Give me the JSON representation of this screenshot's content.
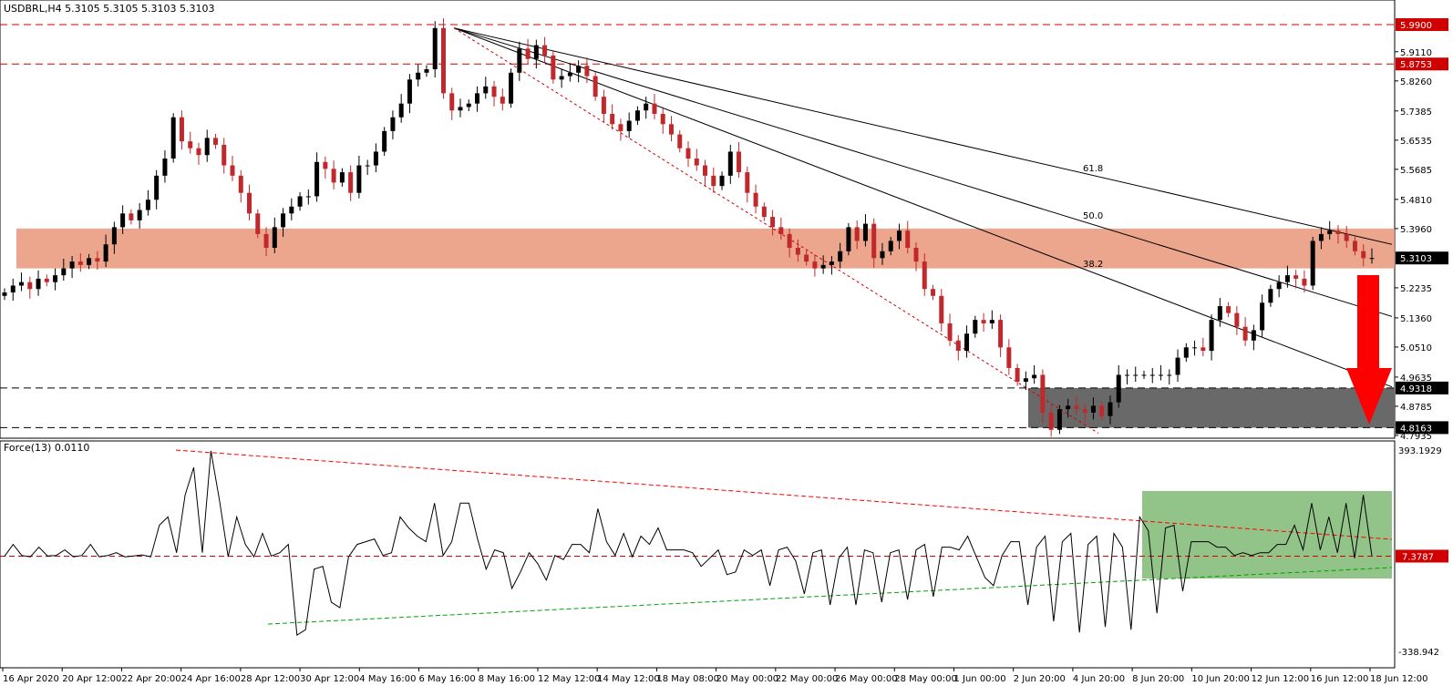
{
  "chart_data": {
    "type": "candlestick",
    "title": "USDBRL,H4  5.3105 5.3105 5.3103 5.3103",
    "price_axis": {
      "ylim": [
        4.7935,
        5.99
      ],
      "ticks": [
        "5.9110",
        "5.8260",
        "5.7385",
        "5.6535",
        "5.5685",
        "5.4810",
        "5.3960",
        "5.2235",
        "5.1360",
        "5.0510",
        "4.9635",
        "4.8785",
        "4.7935"
      ],
      "highlighted_labels": [
        {
          "value": "5.9900",
          "color": "#d00000"
        },
        {
          "value": "5.8753",
          "color": "#d00000"
        },
        {
          "value": "5.3103",
          "color": "#000000"
        },
        {
          "value": "4.9318",
          "color": "#000000"
        },
        {
          "value": "4.8163",
          "color": "#000000"
        }
      ]
    },
    "x_axis_labels": [
      "16 Apr 2020",
      "20 Apr 12:00",
      "22 Apr 20:00",
      "24 Apr 16:00",
      "28 Apr 12:00",
      "30 Apr 12:00",
      "4 May 16:00",
      "6 May 16:00",
      "8 May 16:00",
      "12 May 12:00",
      "14 May 12:00",
      "18 May 08:00",
      "20 May 00:00",
      "22 May 00:00",
      "26 May 00:00",
      "28 May 00:00",
      "1 Jun 00:00",
      "2 Jun 20:00",
      "4 Jun 20:00",
      "8 Jun 20:00",
      "10 Jun 20:00",
      "12 Jun 12:00",
      "16 Jun 12:00",
      "18 Jun 12:00"
    ],
    "resistance_levels": [
      5.99,
      5.8753
    ],
    "support_levels": [
      4.9318,
      4.8163
    ],
    "resistance_zone": {
      "from": 5.28,
      "to": 5.396,
      "color": "#e9967a"
    },
    "support_zone": {
      "from": 4.8163,
      "to": 4.9318,
      "color": "#696969"
    },
    "fibonacci_fan": {
      "labels": [
        "61.8",
        "50.0",
        "38.2"
      ]
    },
    "candles_close": [
      5.21,
      5.23,
      5.24,
      5.22,
      5.25,
      5.24,
      5.26,
      5.28,
      5.3,
      5.29,
      5.31,
      5.3,
      5.35,
      5.4,
      5.44,
      5.42,
      5.45,
      5.48,
      5.55,
      5.6,
      5.72,
      5.65,
      5.63,
      5.61,
      5.66,
      5.64,
      5.58,
      5.55,
      5.5,
      5.44,
      5.38,
      5.34,
      5.4,
      5.44,
      5.46,
      5.49,
      5.49,
      5.59,
      5.57,
      5.53,
      5.56,
      5.5,
      5.58,
      5.58,
      5.62,
      5.68,
      5.72,
      5.76,
      5.83,
      5.85,
      5.86,
      5.98,
      5.79,
      5.74,
      5.75,
      5.76,
      5.79,
      5.81,
      5.78,
      5.76,
      5.85,
      5.92,
      5.89,
      5.93,
      5.9,
      5.83,
      5.84,
      5.85,
      5.87,
      5.84,
      5.78,
      5.73,
      5.7,
      5.68,
      5.71,
      5.74,
      5.76,
      5.73,
      5.7,
      5.67,
      5.63,
      5.6,
      5.58,
      5.55,
      5.52,
      5.55,
      5.62,
      5.56,
      5.5,
      5.46,
      5.43,
      5.4,
      5.38,
      5.34,
      5.32,
      5.3,
      5.28,
      5.29,
      5.3,
      5.33,
      5.4,
      5.36,
      5.41,
      5.31,
      5.33,
      5.36,
      5.39,
      5.34,
      5.3,
      5.22,
      5.2,
      5.12,
      5.07,
      5.04,
      5.09,
      5.13,
      5.12,
      5.13,
      5.05,
      4.99,
      4.95,
      4.96,
      4.97,
      4.86,
      4.81,
      4.87,
      4.88,
      4.87,
      4.86,
      4.88,
      4.85,
      4.89,
      4.97,
      4.97,
      4.97,
      4.97,
      4.97,
      4.97,
      4.97,
      5.02,
      5.05,
      5.05,
      5.04,
      5.13,
      5.17,
      5.15,
      5.11,
      5.07,
      5.1,
      5.18,
      5.22,
      5.24,
      5.26,
      5.25,
      5.23,
      5.36,
      5.38,
      5.39,
      5.38,
      5.36,
      5.33,
      5.31,
      5.3103
    ]
  },
  "oscillator": {
    "title": "Force(13) 0.0110",
    "ylim": [
      -338.942,
      393.1929
    ],
    "ticks": [
      "393.1929",
      "-338.942"
    ],
    "level_label": "7.3787",
    "level_value": 7.3787,
    "values": [
      7,
      50,
      10,
      5,
      40,
      8,
      10,
      30,
      5,
      10,
      50,
      5,
      10,
      20,
      5,
      8,
      12,
      5,
      120,
      150,
      20,
      230,
      330,
      20,
      390,
      210,
      5,
      150,
      50,
      5,
      90,
      8,
      20,
      50,
      -280,
      -260,
      -40,
      -30,
      -160,
      -180,
      5,
      50,
      60,
      70,
      10,
      20,
      150,
      110,
      80,
      60,
      200,
      10,
      60,
      200,
      200,
      70,
      -40,
      30,
      20,
      -110,
      -50,
      20,
      -20,
      -80,
      10,
      -5,
      50,
      50,
      20,
      180,
      60,
      10,
      90,
      5,
      80,
      50,
      110,
      30,
      30,
      30,
      20,
      -30,
      0,
      30,
      -60,
      -50,
      30,
      10,
      30,
      -100,
      30,
      40,
      -10,
      -130,
      20,
      30,
      -170,
      0,
      40,
      -170,
      30,
      20,
      -160,
      20,
      30,
      -150,
      30,
      50,
      -140,
      40,
      40,
      30,
      80,
      5,
      -70,
      -100,
      10,
      60,
      60,
      -170,
      40,
      80,
      -230,
      60,
      90,
      -270,
      50,
      80,
      -250,
      90,
      40,
      -260,
      150,
      100,
      -200,
      110,
      120,
      -120,
      60,
      60,
      60,
      40,
      40,
      10,
      20,
      10,
      20,
      20,
      50,
      50,
      120,
      30,
      200,
      30,
      150,
      20,
      200,
      0,
      230,
      8
    ],
    "descending_trendline": {
      "color": "#ff0000"
    },
    "ascending_trendline": {
      "color": "#00a000"
    },
    "highlight_box": {
      "color": "#77b56b"
    }
  },
  "colors": {
    "bull": "#000000",
    "bear": "#c0282c",
    "resistance": "#d00000",
    "arrow": "#ff0000"
  }
}
